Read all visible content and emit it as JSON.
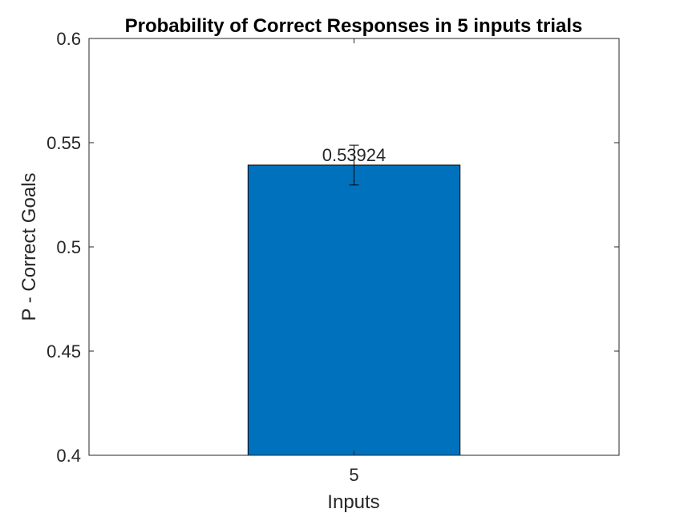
{
  "chart_data": {
    "type": "bar",
    "title": "Probability of Correct Responses in 5 inputs trials",
    "xlabel": "Inputs",
    "ylabel": "P - Correct Goals",
    "categories": [
      "5"
    ],
    "values": [
      0.53924
    ],
    "value_labels": [
      "0.53924"
    ],
    "error_bars": [
      {
        "lower": 0.5297,
        "upper": 0.5488
      }
    ],
    "ylim": [
      0.4,
      0.6
    ],
    "yticks": [
      0.4,
      0.45,
      0.5,
      0.55,
      0.6
    ],
    "ytick_labels": [
      "0.4",
      "0.45",
      "0.5",
      "0.55",
      "0.6"
    ],
    "grid": false,
    "bar_color": "#0072BD"
  }
}
